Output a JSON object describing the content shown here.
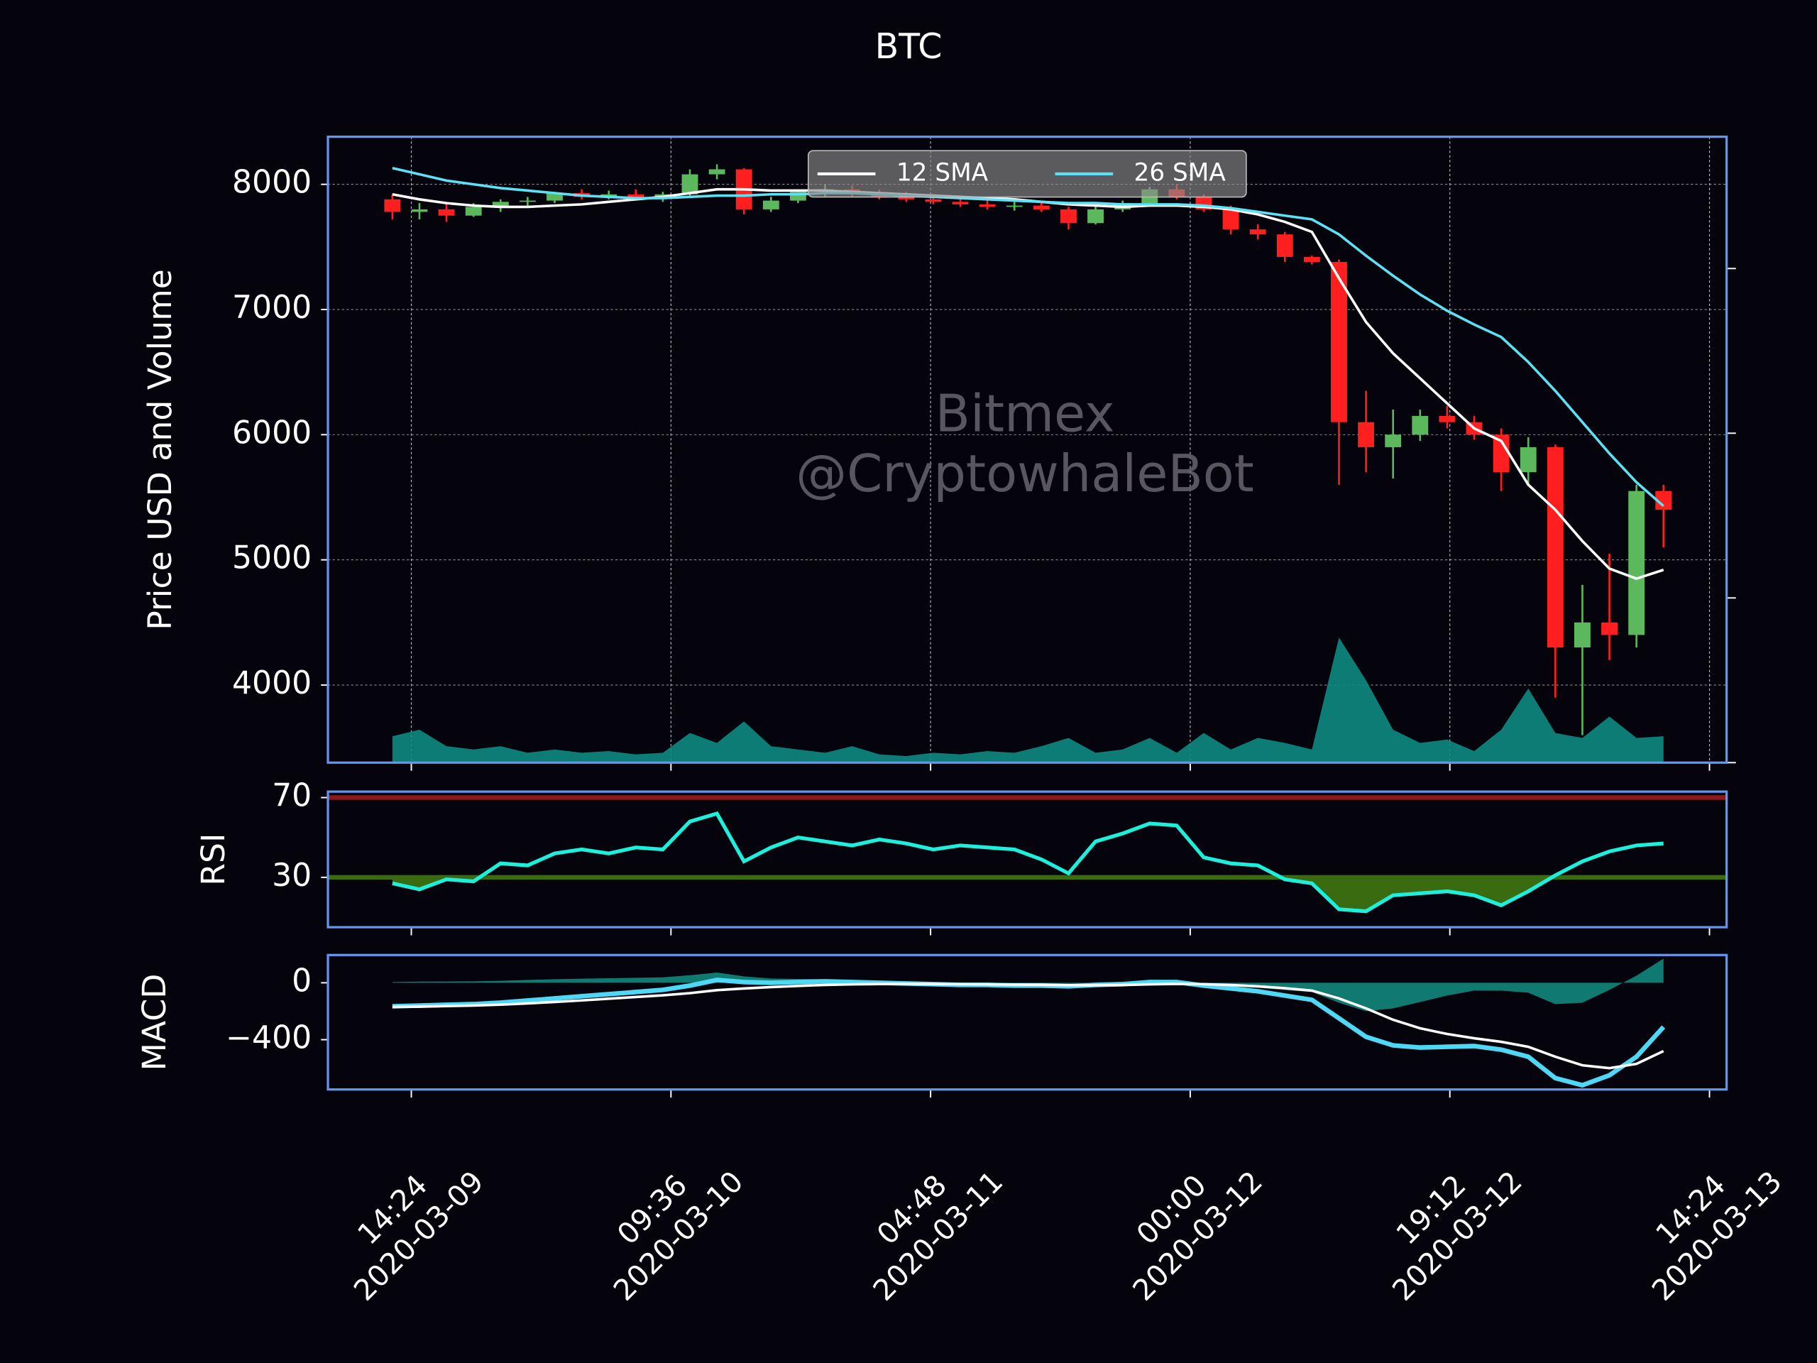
{
  "chart_data": {
    "type": "candlestick",
    "title": "BTC",
    "x": [
      "2020-03-09 13:00",
      "2020-03-09 15:00",
      "2020-03-09 17:00",
      "2020-03-09 19:00",
      "2020-03-09 21:00",
      "2020-03-09 23:00",
      "2020-03-10 01:00",
      "2020-03-10 03:00",
      "2020-03-10 05:00",
      "2020-03-10 07:00",
      "2020-03-10 09:00",
      "2020-03-10 11:00",
      "2020-03-10 13:00",
      "2020-03-10 15:00",
      "2020-03-10 17:00",
      "2020-03-10 19:00",
      "2020-03-10 21:00",
      "2020-03-10 23:00",
      "2020-03-11 01:00",
      "2020-03-11 03:00",
      "2020-03-11 05:00",
      "2020-03-11 07:00",
      "2020-03-11 09:00",
      "2020-03-11 11:00",
      "2020-03-11 13:00",
      "2020-03-11 15:00",
      "2020-03-11 17:00",
      "2020-03-11 19:00",
      "2020-03-11 21:00",
      "2020-03-11 23:00",
      "2020-03-12 01:00",
      "2020-03-12 03:00",
      "2020-03-12 05:00",
      "2020-03-12 07:00",
      "2020-03-12 09:00",
      "2020-03-12 11:00",
      "2020-03-12 13:00",
      "2020-03-12 15:00",
      "2020-03-12 17:00",
      "2020-03-12 19:00",
      "2020-03-12 21:00",
      "2020-03-12 23:00",
      "2020-03-13 01:00",
      "2020-03-13 03:00",
      "2020-03-13 05:00",
      "2020-03-13 07:00",
      "2020-03-13 09:00",
      "2020-03-13 11:00"
    ],
    "xlim": [
      "2020-03-09 08:14",
      "2020-03-13 15:40"
    ],
    "xticks": [
      {
        "value": "2020-03-09 14:24",
        "label": [
          "14:24",
          "2020-03-09"
        ]
      },
      {
        "value": "2020-03-10 09:36",
        "label": [
          "09:36",
          "2020-03-10"
        ]
      },
      {
        "value": "2020-03-11 04:48",
        "label": [
          "04:48",
          "2020-03-11"
        ]
      },
      {
        "value": "2020-03-12 00:00",
        "label": [
          "00:00",
          "2020-03-12"
        ]
      },
      {
        "value": "2020-03-12 19:12",
        "label": [
          "19:12",
          "2020-03-12"
        ]
      },
      {
        "value": "2020-03-13 14:24",
        "label": [
          "14:24",
          "2020-03-13"
        ]
      }
    ],
    "panels": [
      {
        "type": "candlestick",
        "ylabel": "Price USD and Volume",
        "ylim": [
          3380,
          8380
        ],
        "yticks": [
          4000,
          5000,
          6000,
          7000,
          8000
        ],
        "y2lim": [
          0,
          3.8
        ],
        "y2ticks": [
          0,
          1,
          2,
          3
        ],
        "grid": true,
        "up_color": "#5cb85c",
        "down_color": "#ff1f1f",
        "open": [
          7880,
          7780,
          7800,
          7750,
          7820,
          7860,
          7870,
          7930,
          7900,
          7920,
          7900,
          7920,
          8080,
          8120,
          7800,
          7870,
          7940,
          7960,
          7920,
          7900,
          7880,
          7860,
          7840,
          7820,
          7830,
          7800,
          7690,
          7800,
          7850,
          7960,
          7900,
          7800,
          7640,
          7600,
          7420,
          7380,
          6100,
          5900,
          6000,
          6150,
          6100,
          6000,
          5700,
          5900,
          4300,
          4500,
          4400,
          5550
        ],
        "high": [
          7920,
          7850,
          7850,
          7850,
          7880,
          7900,
          7940,
          7960,
          7950,
          7960,
          7940,
          8120,
          8160,
          8130,
          7900,
          7960,
          8000,
          7990,
          7960,
          7940,
          7920,
          7900,
          7880,
          7860,
          7860,
          7820,
          7820,
          7870,
          7980,
          8000,
          7920,
          7830,
          7680,
          7620,
          7430,
          7400,
          6350,
          6200,
          6200,
          6230,
          6150,
          6050,
          5980,
          5920,
          4800,
          5050,
          5600,
          5600
        ],
        "low": [
          7720,
          7720,
          7700,
          7740,
          7780,
          7830,
          7850,
          7880,
          7880,
          7880,
          7860,
          7900,
          8040,
          7760,
          7780,
          7850,
          7900,
          7900,
          7880,
          7860,
          7840,
          7820,
          7800,
          7790,
          7780,
          7640,
          7680,
          7780,
          7830,
          7880,
          7780,
          7600,
          7560,
          7380,
          7360,
          5600,
          5700,
          5650,
          5950,
          6050,
          5960,
          5550,
          5600,
          3900,
          3600,
          4200,
          4300,
          5100
        ],
        "close": [
          7780,
          7800,
          7750,
          7820,
          7860,
          7870,
          7930,
          7900,
          7920,
          7900,
          7920,
          8080,
          8120,
          7800,
          7870,
          7940,
          7960,
          7920,
          7900,
          7880,
          7860,
          7840,
          7820,
          7830,
          7800,
          7690,
          7800,
          7850,
          7960,
          7900,
          7800,
          7640,
          7600,
          7420,
          7380,
          6100,
          5900,
          6000,
          6150,
          6100,
          6000,
          5700,
          5900,
          4300,
          4500,
          4400,
          5550,
          5400
        ],
        "series": [
          {
            "name": "12 SMA",
            "color": "#ffffff",
            "values": [
              7920,
              7880,
              7850,
              7830,
              7820,
              7820,
              7830,
              7840,
              7860,
              7880,
              7900,
              7930,
              7960,
              7960,
              7950,
              7950,
              7950,
              7940,
              7930,
              7920,
              7910,
              7900,
              7890,
              7880,
              7860,
              7840,
              7830,
              7820,
              7830,
              7830,
              7820,
              7800,
              7760,
              7700,
              7620,
              7250,
              6900,
              6650,
              6450,
              6250,
              6050,
              5950,
              5600,
              5400,
              5150,
              4930,
              4850,
              4920
            ]
          },
          {
            "name": "26 SMA",
            "color": "#5ce1f5",
            "values": [
              8130,
              8080,
              8030,
              8000,
              7970,
              7950,
              7930,
              7910,
              7900,
              7890,
              7890,
              7900,
              7910,
              7910,
              7920,
              7920,
              7930,
              7930,
              7920,
              7910,
              7900,
              7890,
              7880,
              7870,
              7860,
              7850,
              7850,
              7840,
              7840,
              7840,
              7830,
              7810,
              7780,
              7750,
              7720,
              7600,
              7430,
              7270,
              7120,
              6990,
              6880,
              6780,
              6580,
              6350,
              6100,
              5850,
              5620,
              5430
            ]
          }
        ],
        "volume": [
          0.16,
          0.2,
          0.1,
          0.08,
          0.1,
          0.06,
          0.08,
          0.06,
          0.07,
          0.05,
          0.06,
          0.18,
          0.12,
          0.25,
          0.1,
          0.08,
          0.06,
          0.1,
          0.05,
          0.04,
          0.06,
          0.05,
          0.07,
          0.06,
          0.1,
          0.15,
          0.06,
          0.08,
          0.15,
          0.06,
          0.18,
          0.08,
          0.15,
          0.12,
          0.08,
          0.76,
          0.5,
          0.2,
          0.12,
          0.14,
          0.07,
          0.2,
          0.45,
          0.18,
          0.15,
          0.28,
          0.15,
          0.16
        ],
        "volume_color": "#0e8a80",
        "legend": "upper center",
        "annotations": [
          "Bitmex",
          "@CryptowhaleBot"
        ]
      },
      {
        "type": "line",
        "ylabel": "RSI",
        "ylim": [
          5,
          73
        ],
        "yticks": [
          30,
          70
        ],
        "color": "#1cf0dc",
        "values": [
          27,
          24,
          29,
          28,
          37,
          36,
          42,
          44,
          42,
          45,
          44,
          58,
          62,
          38,
          45,
          50,
          48,
          46,
          49,
          47,
          44,
          46,
          45,
          44,
          39,
          32,
          48,
          52,
          57,
          56,
          40,
          37,
          36,
          29,
          27,
          14,
          13,
          21,
          22,
          23,
          21,
          16,
          23,
          31,
          38,
          43,
          46,
          47
        ],
        "hlines": [
          {
            "value": 70,
            "color": "#8b1a1a"
          },
          {
            "value": 30,
            "color": "#3a6b10"
          }
        ]
      },
      {
        "type": "macd",
        "ylabel": "MACD",
        "ylim": [
          -750,
          195
        ],
        "yticks": [
          0,
          {
            "value": -400,
            "label": "−400"
          }
        ],
        "series": [
          {
            "color": "#4fd8f5",
            "values": [
              -165,
              -160,
              -155,
              -150,
              -140,
              -125,
              -110,
              -95,
              -80,
              -65,
              -50,
              -20,
              20,
              5,
              0,
              5,
              10,
              5,
              0,
              -5,
              -10,
              -15,
              -15,
              -20,
              -20,
              -25,
              -15,
              -10,
              5,
              5,
              -20,
              -40,
              -60,
              -90,
              -120,
              -250,
              -380,
              -440,
              -455,
              -450,
              -445,
              -470,
              -520,
              -670,
              -720,
              -650,
              -520,
              -310
            ]
          },
          {
            "color": "#ffffff",
            "values": [
              -170,
              -168,
              -164,
              -160,
              -154,
              -145,
              -135,
              -124,
              -112,
              -100,
              -88,
              -73,
              -52,
              -40,
              -30,
              -22,
              -15,
              -11,
              -9,
              -8,
              -9,
              -10,
              -11,
              -13,
              -14,
              -17,
              -17,
              -16,
              -11,
              -8,
              -10,
              -16,
              -25,
              -38,
              -55,
              -110,
              -180,
              -260,
              -320,
              -360,
              -390,
              -415,
              -450,
              -520,
              -580,
              -600,
              -570,
              -480
            ]
          }
        ],
        "histogram": {
          "color": "#138f84",
          "values": [
            5,
            8,
            9,
            10,
            14,
            20,
            25,
            29,
            32,
            35,
            38,
            53,
            72,
            45,
            30,
            27,
            25,
            16,
            9,
            3,
            -1,
            -5,
            -4,
            -7,
            -6,
            -8,
            2,
            6,
            16,
            13,
            -10,
            -24,
            -35,
            -52,
            -65,
            -140,
            -200,
            -180,
            -135,
            -90,
            -55,
            -55,
            -70,
            -150,
            -140,
            -50,
            50,
            170
          ]
        }
      }
    ]
  }
}
